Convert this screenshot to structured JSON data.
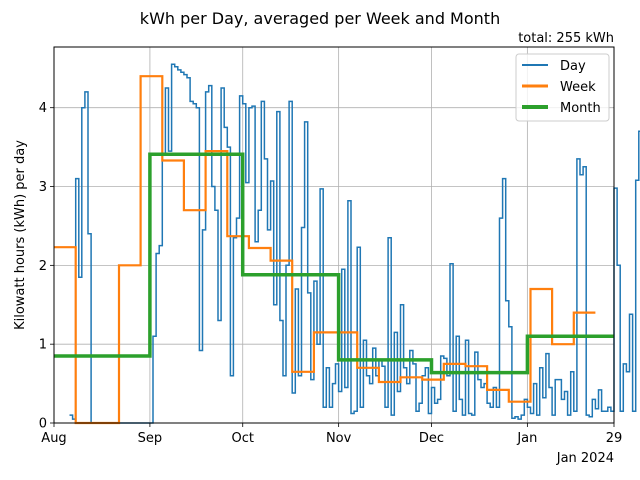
{
  "chart_data": {
    "type": "line",
    "title": "kWh per Day, averaged per Week and Month",
    "subtitle": "total: 255 kWh",
    "xlabel": "",
    "ylabel": "Kilowatt hours (kWh) per day",
    "ylim": [
      0,
      4.77
    ],
    "xlim_days": [
      0,
      181
    ],
    "xticks": [
      {
        "day": 0,
        "label": "Aug"
      },
      {
        "day": 31,
        "label": "Sep"
      },
      {
        "day": 61,
        "label": "Oct"
      },
      {
        "day": 92,
        "label": "Nov"
      },
      {
        "day": 122,
        "label": "Dec"
      },
      {
        "day": 153,
        "label": "Jan"
      },
      {
        "day": 181,
        "label": "29"
      }
    ],
    "xaxis_offset_label": "Jan 2024",
    "yticks": [
      0,
      1,
      2,
      3,
      4
    ],
    "grid": true,
    "legend_position": "top-right",
    "series": [
      {
        "name": "Day",
        "color": "#1f77b4",
        "step": true,
        "x_start": 5,
        "values": [
          0.1,
          0.05,
          3.1,
          1.85,
          4.0,
          4.2,
          2.4,
          0.0,
          0.0,
          0.0,
          0.0,
          0.0,
          0.0,
          0.0,
          0.0,
          0.0,
          0.0,
          0.0,
          0.0,
          0.0,
          0.0,
          0.0,
          0.0,
          0.0,
          0.0,
          0.0,
          0.0,
          1.1,
          2.15,
          2.25,
          3.4,
          4.25,
          3.45,
          4.55,
          4.52,
          4.48,
          4.45,
          4.42,
          4.38,
          4.08,
          4.05,
          4.0,
          0.92,
          2.45,
          4.2,
          4.28,
          3.0,
          2.7,
          1.3,
          4.25,
          3.75,
          3.5,
          0.6,
          2.35,
          2.6,
          4.15,
          4.05,
          3.05,
          4.0,
          4.02,
          2.3,
          2.7,
          4.08,
          3.35,
          2.45,
          3.07,
          1.5,
          3.95,
          1.3,
          0.6,
          2.0,
          4.08,
          0.38,
          1.7,
          0.6,
          2.48,
          3.82,
          1.65,
          0.55,
          1.8,
          1.0,
          2.97,
          0.2,
          0.7,
          0.2,
          0.5,
          0.75,
          0.4,
          1.95,
          0.45,
          2.82,
          0.12,
          0.15,
          2.23,
          0.2,
          1.05,
          0.6,
          0.5,
          0.95,
          0.6,
          0.8,
          0.72,
          0.2,
          2.35,
          0.1,
          1.15,
          0.4,
          1.5,
          0.7,
          0.5,
          0.92,
          0.75,
          0.15,
          0.25,
          0.6,
          0.7,
          0.12,
          0.45,
          0.25,
          0.3,
          0.85,
          0.82,
          0.6,
          2.02,
          0.15,
          1.1,
          0.3,
          0.1,
          1.05,
          0.12,
          0.1,
          0.9,
          0.55,
          0.45,
          0.5,
          0.25,
          0.2,
          0.45,
          0.2,
          2.6,
          3.1,
          1.55,
          1.22,
          0.06,
          0.08,
          0.05,
          0.1,
          0.3,
          0.2,
          0.12,
          0.5,
          0.1,
          0.7,
          0.32,
          0.88,
          0.45,
          0.1,
          0.55,
          0.55,
          0.3,
          0.4,
          0.1,
          0.65,
          0.15,
          3.35,
          3.15,
          3.25,
          0.1,
          0.08,
          0.3,
          0.18,
          0.42,
          0.15,
          0.15,
          0.2,
          0.15,
          2.98,
          2.0,
          0.15,
          0.75,
          0.65,
          1.38,
          0.15,
          3.08,
          3.7
        ]
      },
      {
        "name": "Week",
        "color": "#ff7f0e",
        "step": true,
        "segments": [
          {
            "start": 0,
            "end": 7,
            "value": 2.23
          },
          {
            "start": 7,
            "end": 21,
            "value": 0.0
          },
          {
            "start": 21,
            "end": 28,
            "value": 2.0
          },
          {
            "start": 28,
            "end": 35,
            "value": 4.4
          },
          {
            "start": 35,
            "end": 42,
            "value": 3.33
          },
          {
            "start": 42,
            "end": 49,
            "value": 2.7
          },
          {
            "start": 49,
            "end": 56,
            "value": 3.45
          },
          {
            "start": 56,
            "end": 63,
            "value": 2.37
          },
          {
            "start": 63,
            "end": 70,
            "value": 2.22
          },
          {
            "start": 70,
            "end": 77,
            "value": 2.06
          },
          {
            "start": 77,
            "end": 84,
            "value": 0.65
          },
          {
            "start": 84,
            "end": 91,
            "value": 1.15
          },
          {
            "start": 91,
            "end": 98,
            "value": 1.15
          },
          {
            "start": 98,
            "end": 105,
            "value": 0.7
          },
          {
            "start": 105,
            "end": 112,
            "value": 0.52
          },
          {
            "start": 112,
            "end": 119,
            "value": 0.58
          },
          {
            "start": 119,
            "end": 126,
            "value": 0.55
          },
          {
            "start": 126,
            "end": 133,
            "value": 0.75
          },
          {
            "start": 133,
            "end": 140,
            "value": 0.72
          },
          {
            "start": 140,
            "end": 147,
            "value": 0.42
          },
          {
            "start": 147,
            "end": 154,
            "value": 0.27
          },
          {
            "start": 154,
            "end": 161,
            "value": 1.7
          },
          {
            "start": 161,
            "end": 168,
            "value": 1.0
          },
          {
            "start": 168,
            "end": 175,
            "value": 1.4
          }
        ]
      },
      {
        "name": "Month",
        "color": "#2ca02c",
        "step": true,
        "segments": [
          {
            "start": 0,
            "end": 31,
            "value": 0.85
          },
          {
            "start": 31,
            "end": 61,
            "value": 3.41
          },
          {
            "start": 61,
            "end": 92,
            "value": 1.88
          },
          {
            "start": 92,
            "end": 122,
            "value": 0.8
          },
          {
            "start": 122,
            "end": 153,
            "value": 0.64
          },
          {
            "start": 153,
            "end": 181,
            "value": 1.1
          }
        ]
      }
    ]
  }
}
